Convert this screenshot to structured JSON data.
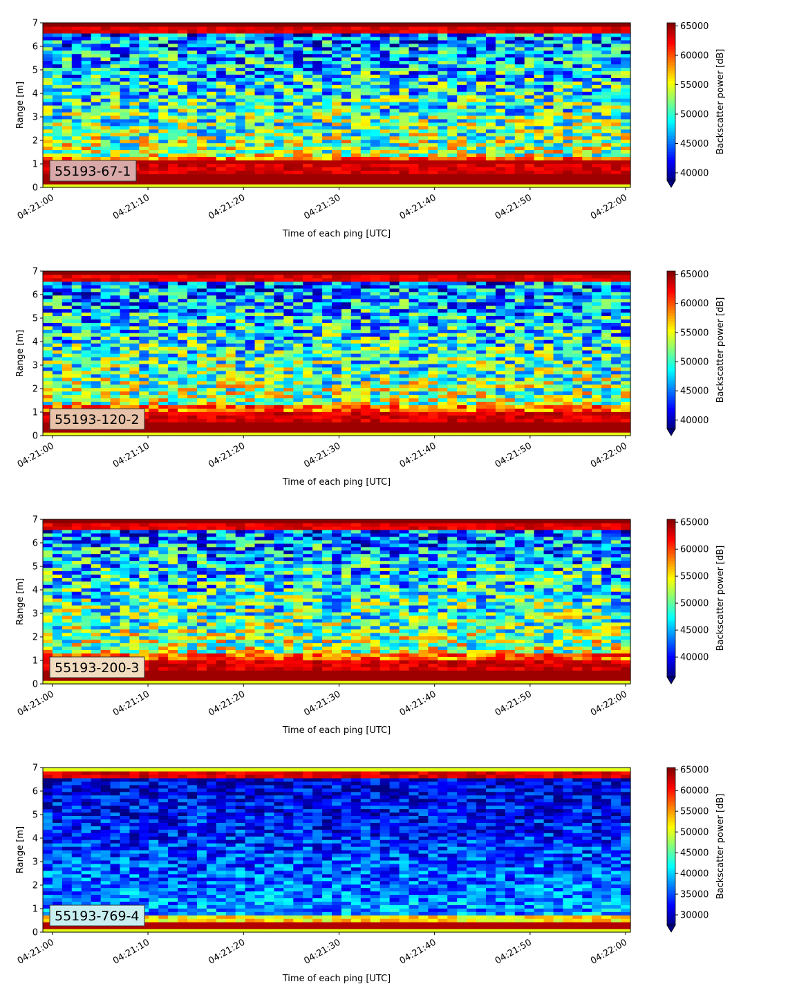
{
  "chart_data": [
    {
      "type": "heatmap",
      "label_box": "55193-67-1",
      "xlabel": "Time of each ping [UTC]",
      "ylabel": "Range [m]",
      "colorbar_label": "Backscatter power [dB]",
      "x_ticks": [
        "04:21:00",
        "04:21:10",
        "04:21:20",
        "04:21:30",
        "04:21:40",
        "04:21:50",
        "04:22:00"
      ],
      "y_ticks": [
        "0",
        "1",
        "2",
        "3",
        "4",
        "5",
        "6",
        "7"
      ],
      "xlim": [
        "04:20:59",
        "04:22:00"
      ],
      "ylim": [
        0,
        7
      ],
      "colorbar_ticks": [
        40000,
        45000,
        50000,
        55000,
        60000,
        65000
      ],
      "colorbar_range": [
        38700,
        65535
      ],
      "colormap": "jet",
      "colorbar_extend": "min",
      "label_box_color": "#d9a9a9"
    },
    {
      "type": "heatmap",
      "label_box": "55193-120-2",
      "xlabel": "Time of each ping [UTC]",
      "ylabel": "Range [m]",
      "colorbar_label": "Backscatter power [dB]",
      "x_ticks": [
        "04:21:00",
        "04:21:10",
        "04:21:20",
        "04:21:30",
        "04:21:40",
        "04:21:50",
        "04:22:00"
      ],
      "y_ticks": [
        "0",
        "1",
        "2",
        "3",
        "4",
        "5",
        "6",
        "7"
      ],
      "xlim": [
        "04:20:59",
        "04:22:00"
      ],
      "ylim": [
        0,
        7
      ],
      "colorbar_ticks": [
        40000,
        45000,
        50000,
        55000,
        60000,
        65000
      ],
      "colorbar_range": [
        38500,
        65535
      ],
      "colormap": "jet",
      "colorbar_extend": "min",
      "label_box_color": "#e8c2a8"
    },
    {
      "type": "heatmap",
      "label_box": "55193-200-3",
      "xlabel": "Time of each ping [UTC]",
      "ylabel": "Range [m]",
      "colorbar_label": "Backscatter power [dB]",
      "x_ticks": [
        "04:21:00",
        "04:21:10",
        "04:21:20",
        "04:21:30",
        "04:21:40",
        "04:21:50",
        "04:22:00"
      ],
      "y_ticks": [
        "0",
        "1",
        "2",
        "3",
        "4",
        "5",
        "6",
        "7"
      ],
      "xlim": [
        "04:20:59",
        "04:22:00"
      ],
      "ylim": [
        0,
        7
      ],
      "colorbar_ticks": [
        40000,
        45000,
        50000,
        55000,
        60000,
        65000
      ],
      "colorbar_range": [
        36300,
        65535
      ],
      "colormap": "jet",
      "colorbar_extend": "min",
      "label_box_color": "#f2dcc0"
    },
    {
      "type": "heatmap",
      "label_box": "55193-769-4",
      "xlabel": "Time of each ping [UTC]",
      "ylabel": "Range [m]",
      "colorbar_label": "Backscatter power [dB]",
      "x_ticks": [
        "04:21:00",
        "04:21:10",
        "04:21:20",
        "04:21:30",
        "04:21:40",
        "04:21:50",
        "04:22:00"
      ],
      "y_ticks": [
        "0",
        "1",
        "2",
        "3",
        "4",
        "5",
        "6",
        "7"
      ],
      "xlim": [
        "04:20:59",
        "04:22:00"
      ],
      "ylim": [
        0,
        7
      ],
      "colorbar_ticks": [
        30000,
        35000,
        40000,
        45000,
        50000,
        55000,
        60000,
        65000
      ],
      "colorbar_range": [
        27500,
        65535
      ],
      "colormap": "jet",
      "colorbar_extend": "min",
      "label_box_color": "#c9eef0"
    }
  ]
}
